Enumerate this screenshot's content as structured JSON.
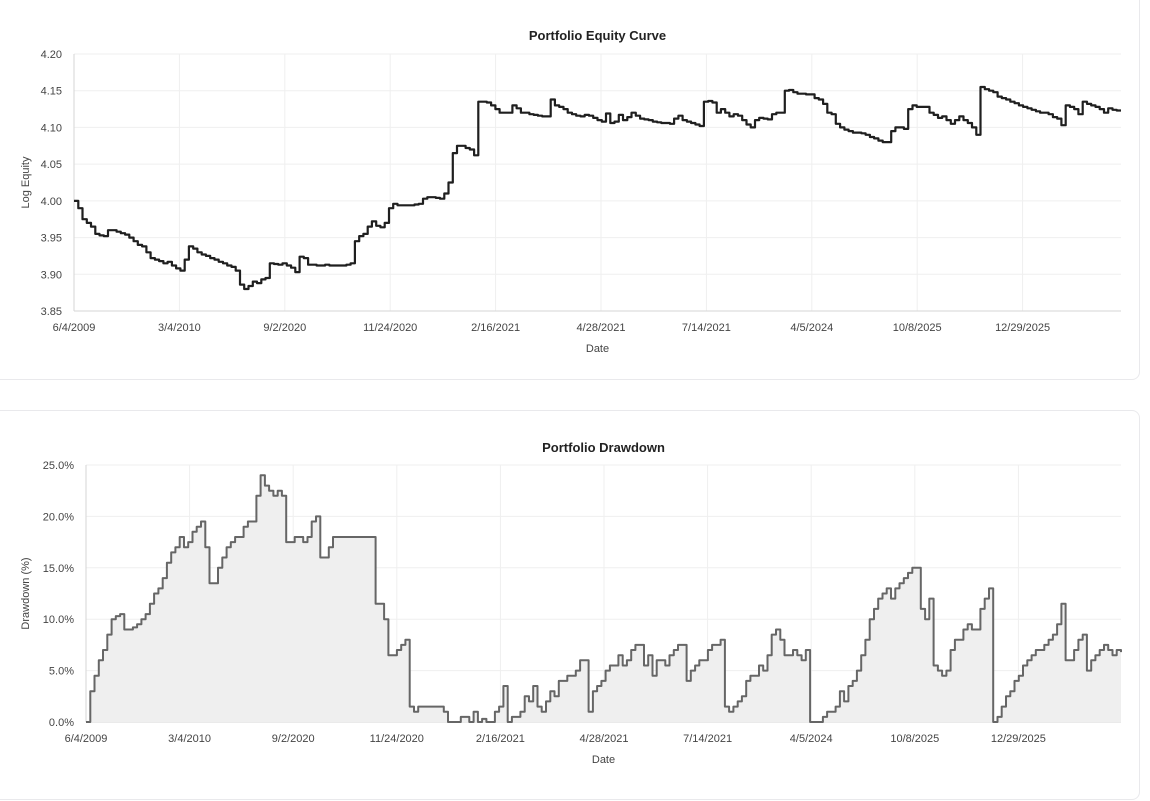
{
  "chart_data": [
    {
      "type": "line",
      "title": "Portfolio Equity Curve",
      "xlabel": "Date",
      "ylabel": "Log Equity",
      "ylim": [
        3.85,
        4.2
      ],
      "y_ticks": [
        "3.85",
        "3.90",
        "3.95",
        "4.00",
        "4.05",
        "4.10",
        "4.15",
        "4.20"
      ],
      "x_ticks": [
        "6/4/2009",
        "3/4/2010",
        "9/2/2020",
        "11/24/2020",
        "2/16/2021",
        "4/28/2021",
        "7/14/2021",
        "4/5/2024",
        "10/8/2025",
        "12/29/2025"
      ],
      "grid": true,
      "series": [
        {
          "color": "#1f1f1f",
          "values": [
            4.0,
            3.99,
            3.975,
            3.97,
            3.965,
            3.955,
            3.953,
            3.952,
            3.96,
            3.96,
            3.958,
            3.956,
            3.954,
            3.95,
            3.945,
            3.94,
            3.938,
            3.93,
            3.922,
            3.92,
            3.918,
            3.915,
            3.917,
            3.912,
            3.908,
            3.905,
            3.92,
            3.938,
            3.935,
            3.93,
            3.927,
            3.925,
            3.922,
            3.92,
            3.917,
            3.915,
            3.912,
            3.91,
            3.905,
            3.886,
            3.88,
            3.884,
            3.89,
            3.888,
            3.893,
            3.895,
            3.915,
            3.914,
            3.913,
            3.915,
            3.912,
            3.909,
            3.903,
            3.924,
            3.922,
            3.913,
            3.913,
            3.912,
            3.912,
            3.913,
            3.912,
            3.912,
            3.912,
            3.912,
            3.913,
            3.915,
            3.945,
            3.952,
            3.955,
            3.965,
            3.972,
            3.966,
            3.964,
            3.97,
            3.99,
            3.996,
            3.994,
            3.994,
            3.994,
            3.994,
            3.995,
            3.996,
            4.003,
            4.005,
            4.005,
            4.004,
            4.003,
            4.01,
            4.025,
            4.065,
            4.075,
            4.075,
            4.072,
            4.07,
            4.062,
            4.135,
            4.135,
            4.134,
            4.13,
            4.125,
            4.12,
            4.12,
            4.12,
            4.13,
            4.126,
            4.12,
            4.12,
            4.118,
            4.117,
            4.116,
            4.115,
            4.115,
            4.138,
            4.13,
            4.128,
            4.125,
            4.12,
            4.118,
            4.116,
            4.115,
            4.117,
            4.116,
            4.113,
            4.11,
            4.108,
            4.119,
            4.106,
            4.108,
            4.117,
            4.11,
            4.114,
            4.12,
            4.116,
            4.112,
            4.111,
            4.11,
            4.108,
            4.107,
            4.106,
            4.106,
            4.105,
            4.112,
            4.116,
            4.11,
            4.108,
            4.106,
            4.104,
            4.102,
            4.135,
            4.136,
            4.134,
            4.12,
            4.125,
            4.12,
            4.115,
            4.118,
            4.116,
            4.11,
            4.104,
            4.1,
            4.11,
            4.113,
            4.112,
            4.111,
            4.118,
            4.12,
            4.12,
            4.15,
            4.151,
            4.148,
            4.146,
            4.146,
            4.145,
            4.145,
            4.14,
            4.138,
            4.132,
            4.12,
            4.118,
            4.105,
            4.1,
            4.097,
            4.095,
            4.093,
            4.093,
            4.092,
            4.09,
            4.087,
            4.085,
            4.082,
            4.08,
            4.08,
            4.095,
            4.1,
            4.1,
            4.098,
            4.125,
            4.13,
            4.128,
            4.128,
            4.128,
            4.12,
            4.117,
            4.113,
            4.115,
            4.11,
            4.105,
            4.11,
            4.115,
            4.11,
            4.106,
            4.1,
            4.09,
            4.155,
            4.152,
            4.15,
            4.148,
            4.142,
            4.14,
            4.138,
            4.135,
            4.133,
            4.13,
            4.128,
            4.126,
            4.124,
            4.122,
            4.12,
            4.12,
            4.118,
            4.114,
            4.112,
            4.103,
            4.13,
            4.128,
            4.125,
            4.118,
            4.135,
            4.132,
            4.13,
            4.128,
            4.125,
            4.12,
            4.126,
            4.124,
            4.123,
            4.123
          ]
        }
      ]
    },
    {
      "type": "area",
      "title": "Portfolio Drawdown",
      "xlabel": "Date",
      "ylabel": "Drawdown (%)",
      "ylim": [
        0,
        25
      ],
      "y_ticks": [
        "0.0%",
        "5.0%",
        "10.0%",
        "15.0%",
        "20.0%",
        "25.0%"
      ],
      "x_ticks": [
        "6/4/2009",
        "3/4/2010",
        "9/2/2020",
        "11/24/2020",
        "2/16/2021",
        "4/28/2021",
        "7/14/2021",
        "4/5/2024",
        "10/8/2025",
        "12/29/2025"
      ],
      "grid": true,
      "series": [
        {
          "color": "#666666",
          "fill": "#efefef",
          "values": [
            0,
            3,
            4.5,
            6,
            7,
            8.5,
            10,
            10.3,
            10.5,
            9,
            9,
            9.2,
            9.5,
            10,
            10.5,
            11.5,
            12.5,
            13,
            14,
            15.5,
            16.5,
            17,
            18,
            17,
            17.5,
            18.5,
            19,
            19.5,
            17,
            13.5,
            13.5,
            15,
            16,
            17,
            17.5,
            18,
            18,
            19,
            19.5,
            19.5,
            22,
            24,
            23,
            22.5,
            22,
            22.5,
            22,
            17.5,
            17.5,
            18,
            18,
            17.5,
            18,
            19.5,
            20,
            16,
            16,
            17,
            18,
            18,
            18,
            18,
            18,
            18,
            18,
            18,
            18,
            18,
            11.5,
            11.5,
            10,
            6.5,
            6.5,
            7,
            7.5,
            8,
            1.5,
            1,
            1.5,
            1.5,
            1.5,
            1.5,
            1.5,
            1.5,
            1,
            0,
            0,
            0,
            0.5,
            0.5,
            0,
            1,
            0,
            0.3,
            0,
            0,
            1,
            1.5,
            3.5,
            0,
            0.5,
            0.5,
            1,
            2.5,
            2,
            3.5,
            1.5,
            1,
            2,
            3,
            2.5,
            4,
            4,
            4.5,
            4.5,
            5,
            6,
            6,
            1,
            3,
            3.5,
            4,
            5,
            5.5,
            5.5,
            6.5,
            5.5,
            6,
            7,
            7.5,
            7.5,
            5.5,
            6.5,
            4.5,
            6,
            6,
            5.5,
            6.5,
            7,
            7.5,
            7.5,
            4,
            5,
            5.5,
            6,
            6,
            7,
            7.5,
            7.5,
            8,
            1.5,
            1,
            1.5,
            2,
            2.5,
            4,
            4.5,
            4.5,
            5.5,
            5,
            6.5,
            8.5,
            9,
            8,
            6.5,
            6.5,
            7,
            6.5,
            6,
            7,
            0,
            0,
            0,
            0.5,
            1,
            1,
            1.5,
            3,
            2,
            3.5,
            4,
            5,
            6.5,
            8,
            10,
            11,
            12,
            12.5,
            13,
            12,
            13,
            13.5,
            14,
            14.5,
            15,
            15,
            11,
            10,
            12,
            5.5,
            5,
            4.5,
            5,
            7,
            8,
            8,
            9,
            9.5,
            9,
            9,
            11,
            12,
            13,
            0,
            0.5,
            1.5,
            2.5,
            3,
            4,
            4.5,
            5.5,
            6,
            6.5,
            7,
            7,
            7.5,
            8,
            8.5,
            9.5,
            11.5,
            6,
            6,
            7,
            8,
            8.5,
            5,
            6,
            6.5,
            7,
            7.5,
            7,
            6.5,
            7,
            6.8
          ]
        }
      ]
    }
  ]
}
